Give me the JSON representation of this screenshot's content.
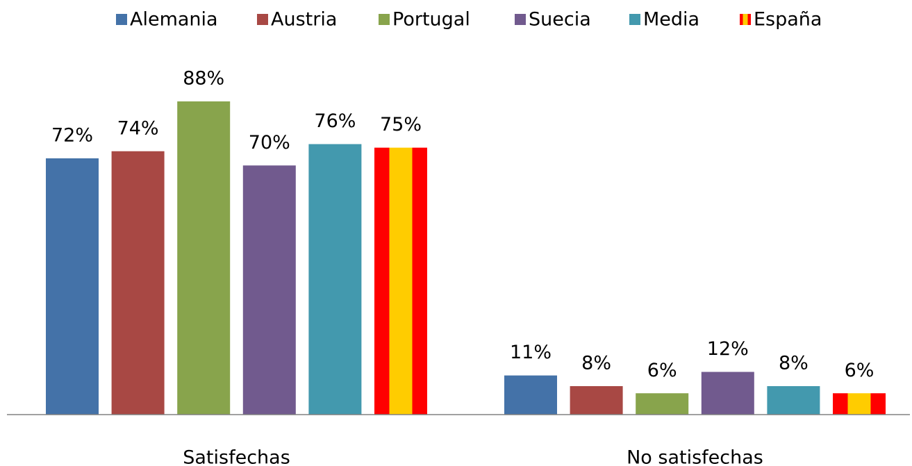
{
  "chart_data": {
    "type": "bar",
    "categories": [
      "Satisfechas",
      "No satisfechas"
    ],
    "series": [
      {
        "name": "Alemania",
        "color": "#4472a8",
        "values": [
          72,
          11
        ],
        "value_labels": [
          "72%",
          "11%"
        ]
      },
      {
        "name": "Austria",
        "color": "#a84844",
        "values": [
          74,
          8
        ],
        "value_labels": [
          "74%",
          "8%"
        ]
      },
      {
        "name": "Portugal",
        "color": "#88a44c",
        "values": [
          88,
          6
        ],
        "value_labels": [
          "88%",
          "6%"
        ]
      },
      {
        "name": "Suecia",
        "color": "#715a8e",
        "values": [
          70,
          12
        ],
        "value_labels": [
          "70%",
          "12%"
        ]
      },
      {
        "name": "Media",
        "color": "#4399ae",
        "values": [
          76,
          8
        ],
        "value_labels": [
          "76%",
          "8%"
        ]
      },
      {
        "name": "España",
        "color": "#ff0000",
        "stripe_color": "#ffcc00",
        "values": [
          75,
          6
        ],
        "value_labels": [
          "75%",
          "6%"
        ]
      }
    ],
    "ylim": [
      0,
      100
    ],
    "legend": "top"
  }
}
